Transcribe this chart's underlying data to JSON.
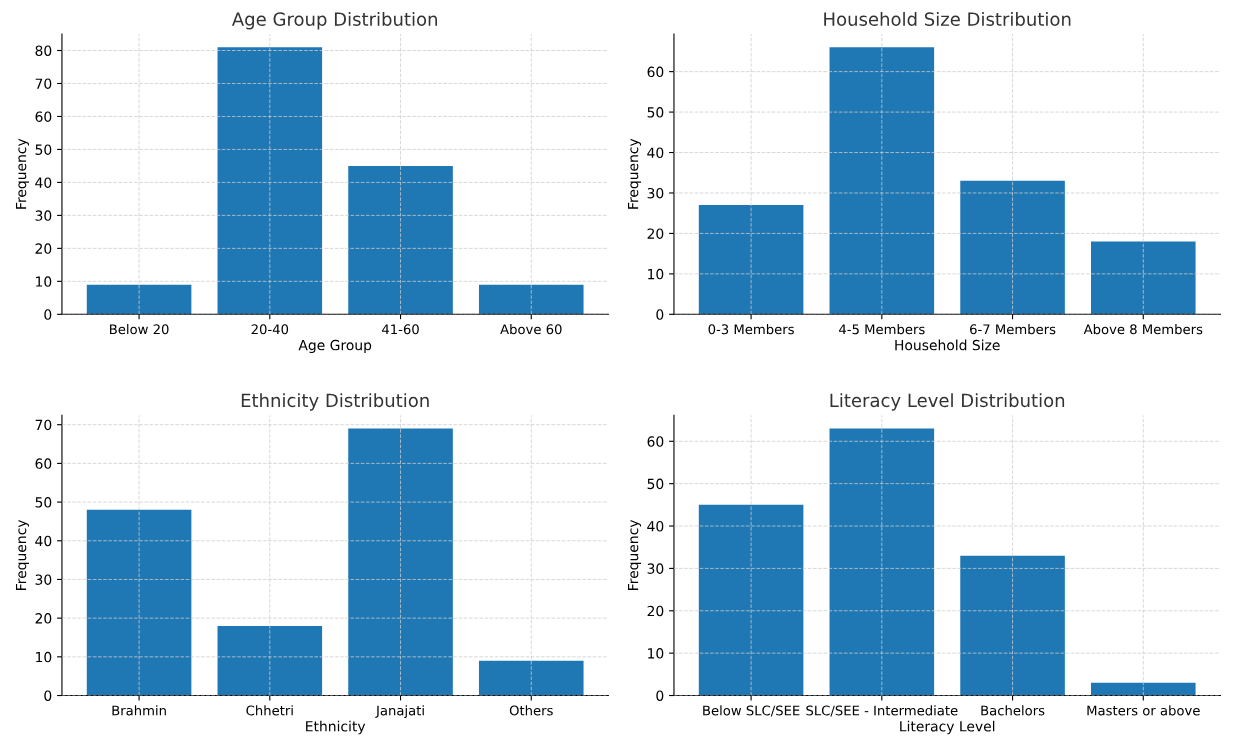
{
  "chart_data": [
    {
      "type": "bar",
      "title": "Age Group Distribution",
      "xlabel": "Age Group",
      "ylabel": "Frequency",
      "categories": [
        "Below 20",
        "20-40",
        "41-60",
        "Above 60"
      ],
      "values": [
        9,
        81,
        45,
        9
      ],
      "color": "#1f77b4",
      "ylim": [
        0,
        85
      ],
      "yticks": [
        0,
        10,
        20,
        30,
        40,
        50,
        60,
        70,
        80
      ],
      "grid": true
    },
    {
      "type": "bar",
      "title": "Household Size Distribution",
      "xlabel": "Household Size",
      "ylabel": "Frequency",
      "categories": [
        "0-3 Members",
        "4-5 Members",
        "6-7 Members",
        "Above 8 Members"
      ],
      "values": [
        27,
        66,
        33,
        18
      ],
      "color": "#1f77b4",
      "ylim": [
        0,
        69.3
      ],
      "yticks": [
        0,
        10,
        20,
        30,
        40,
        50,
        60
      ],
      "grid": true
    },
    {
      "type": "bar",
      "title": "Ethnicity Distribution",
      "xlabel": "Ethnicity",
      "ylabel": "Frequency",
      "categories": [
        "Brahmin",
        "Chhetri",
        "Janajati",
        "Others"
      ],
      "values": [
        48,
        18,
        69,
        9
      ],
      "color": "#1f77b4",
      "ylim": [
        0,
        72.45
      ],
      "yticks": [
        0,
        10,
        20,
        30,
        40,
        50,
        60,
        70
      ],
      "grid": true
    },
    {
      "type": "bar",
      "title": "Literacy Level Distribution",
      "xlabel": "Literacy Level",
      "ylabel": "Frequency",
      "categories": [
        "Below SLC/SEE",
        "SLC/SEE - Intermediate",
        "Bachelors",
        "Masters or above"
      ],
      "values": [
        45,
        63,
        33,
        3
      ],
      "color": "#1f77b4",
      "ylim": [
        0,
        66.15
      ],
      "yticks": [
        0,
        10,
        20,
        30,
        40,
        50,
        60
      ],
      "grid": true
    }
  ]
}
